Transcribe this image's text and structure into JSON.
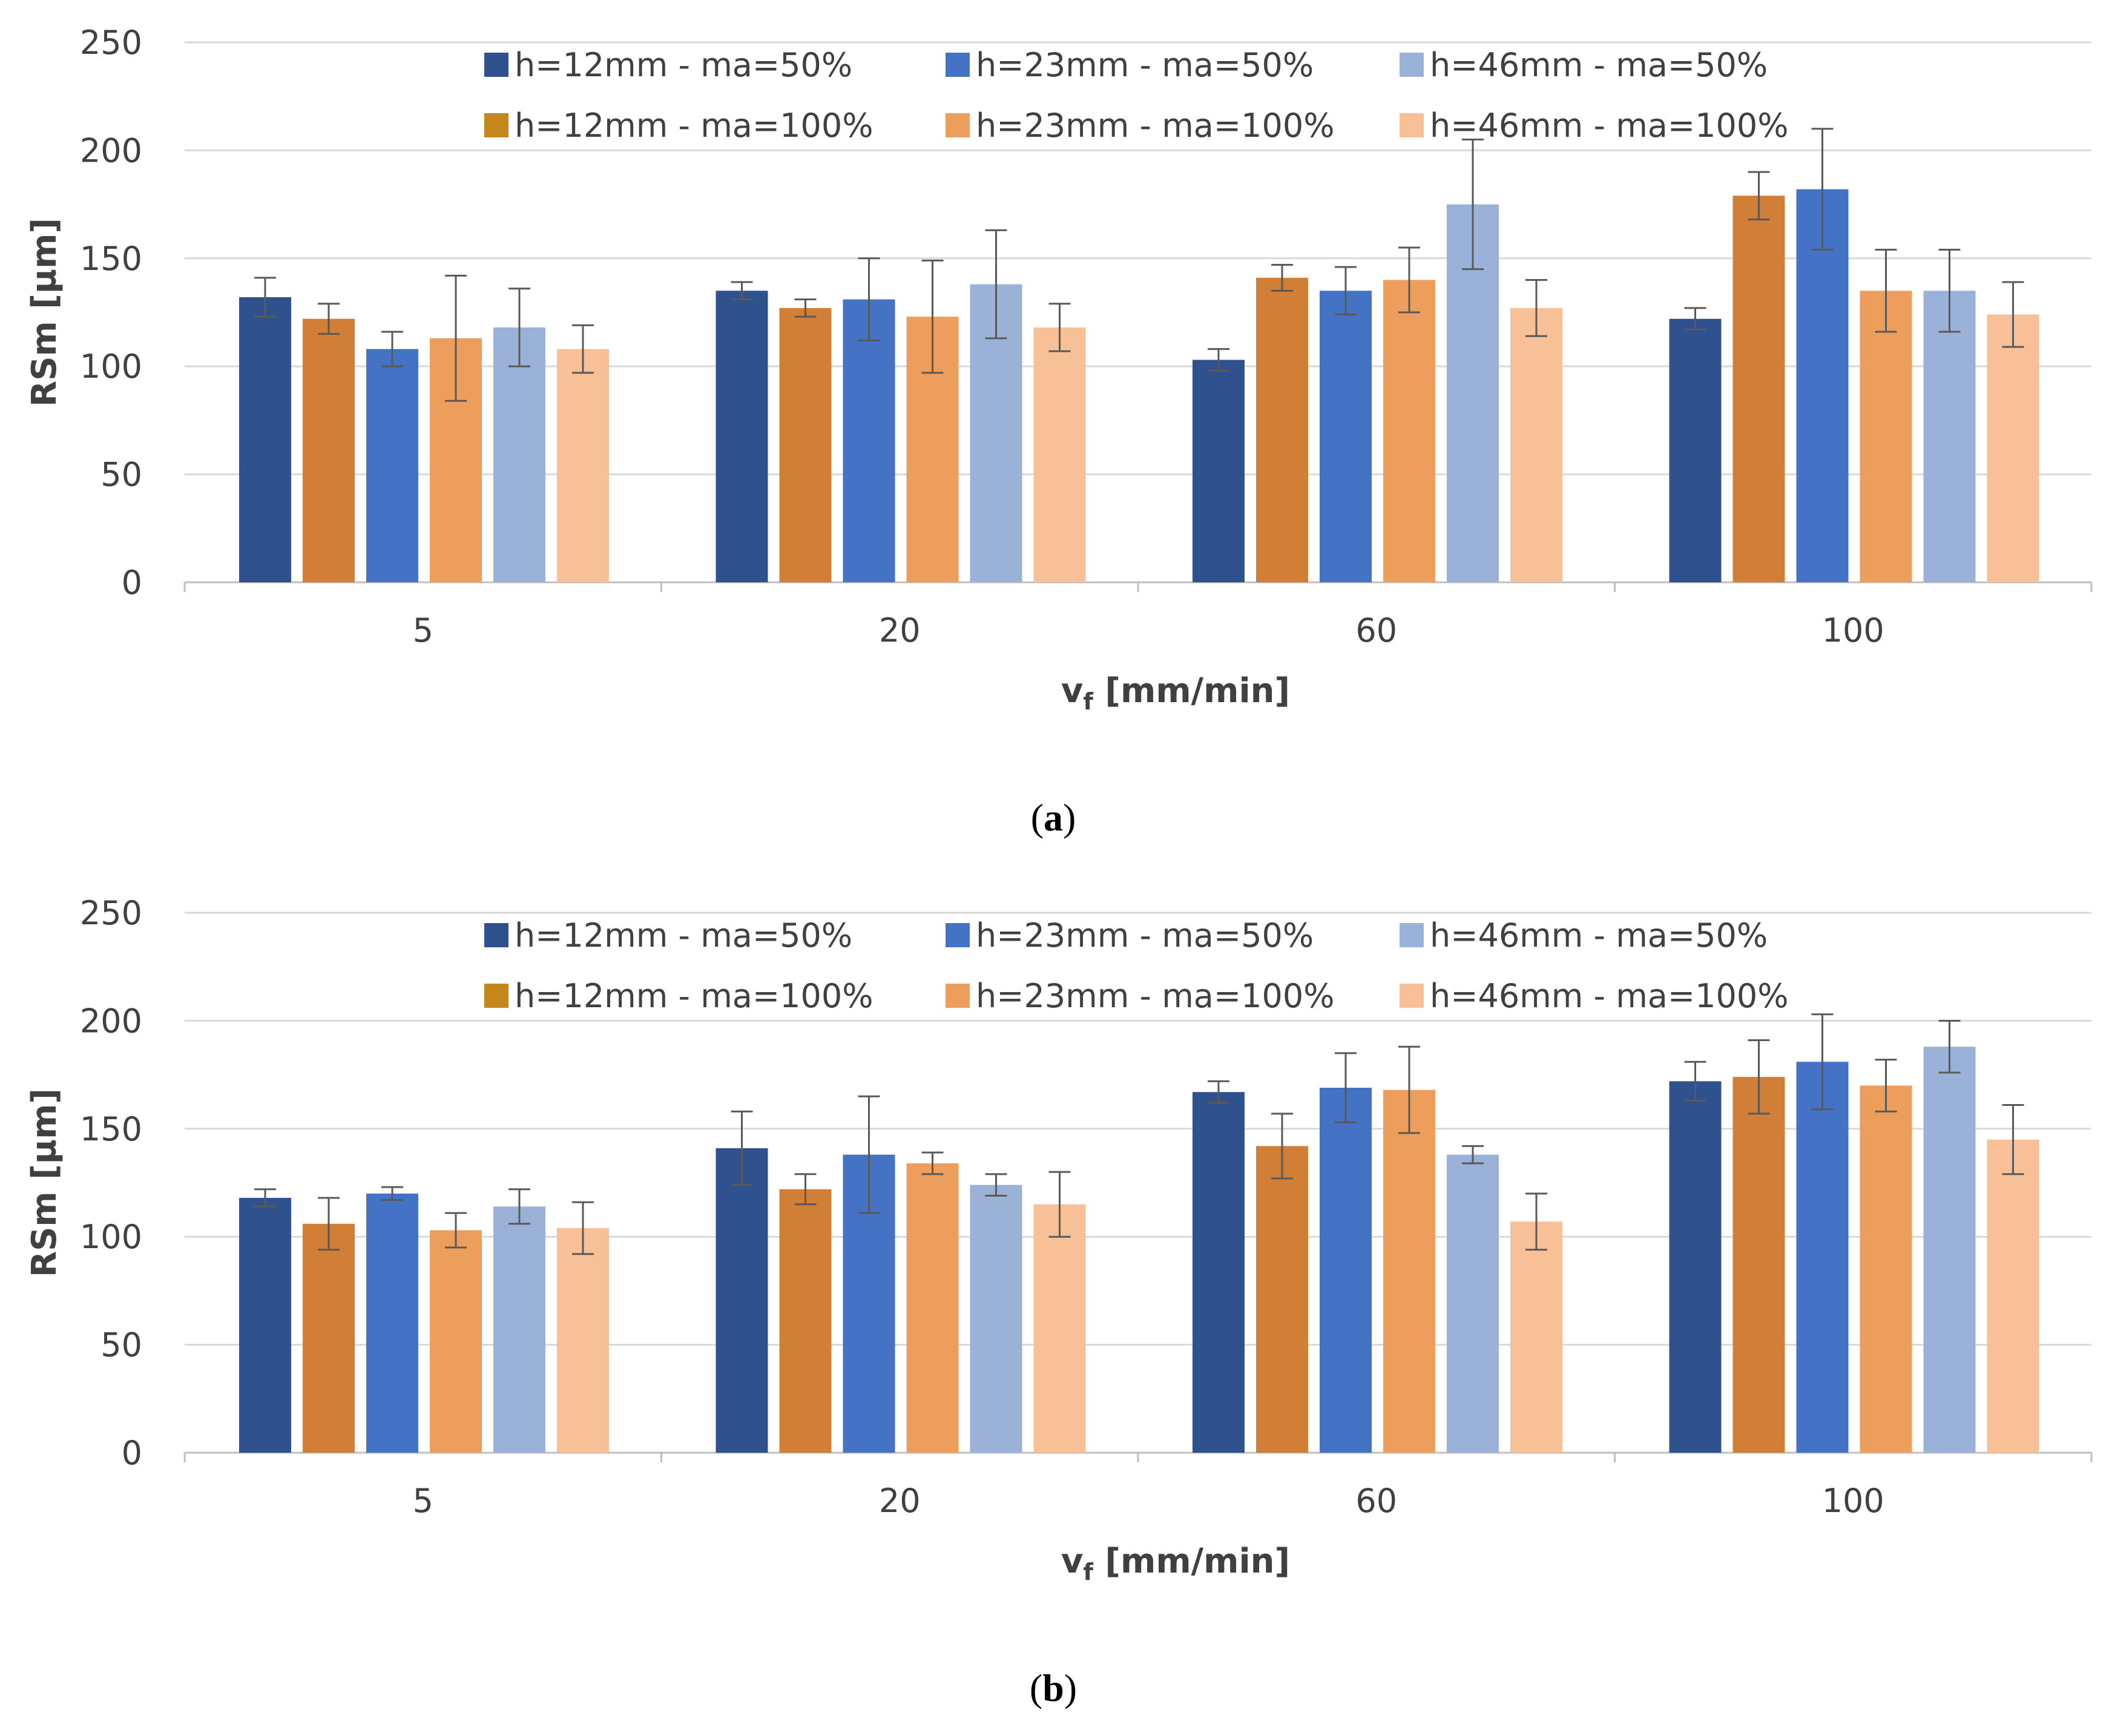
{
  "colors": {
    "h12_m50": "#2f528f",
    "h12_m100": "#d17e37",
    "h23_m50": "#4472c4",
    "h23_m100": "#ed9e5c",
    "h46_m50": "#9bb2d8",
    "h46_m100": "#f8c096",
    "legend_h12_m100": "#c5861b",
    "grid": "#d9d9d9",
    "axis": "#bfbfbf",
    "error_bar": "#595959"
  },
  "chart_data": [
    {
      "type": "bar",
      "panel": "a",
      "caption": {
        "open": "(",
        "letter": "a",
        "close": ")"
      },
      "categories": [
        "5",
        "20",
        "60",
        "100"
      ],
      "xlabel": {
        "base": "v",
        "sub": "f",
        "rest": " [mm/min]"
      },
      "ylabel": "RSm [µm]",
      "ylim": [
        0,
        250
      ],
      "yticks": [
        "0",
        "50",
        "100",
        "150",
        "200",
        "250"
      ],
      "grid": true,
      "legend_position": "top",
      "series": [
        {
          "key": "h12_m50",
          "name": "h=12mm - ma=50%",
          "values": [
            132,
            135,
            103,
            122
          ],
          "errors": [
            9,
            4,
            5,
            5
          ]
        },
        {
          "key": "h12_m100",
          "name": "h=12mm - ma=100%",
          "values": [
            122,
            127,
            141,
            179
          ],
          "errors": [
            7,
            4,
            6,
            11
          ]
        },
        {
          "key": "h23_m50",
          "name": "h=23mm - ma=50%",
          "values": [
            108,
            131,
            135,
            182
          ],
          "errors": [
            8,
            19,
            11,
            28
          ]
        },
        {
          "key": "h23_m100",
          "name": "h=23mm - ma=100%",
          "values": [
            113,
            123,
            140,
            135
          ],
          "errors": [
            29,
            26,
            15,
            19
          ]
        },
        {
          "key": "h46_m50",
          "name": "h=46mm - ma=50%",
          "values": [
            118,
            138,
            175,
            135
          ],
          "errors": [
            18,
            25,
            30,
            19
          ]
        },
        {
          "key": "h46_m100",
          "name": "h=46mm - ma=100%",
          "values": [
            108,
            118,
            127,
            124
          ],
          "errors": [
            11,
            11,
            13,
            15
          ]
        }
      ]
    },
    {
      "type": "bar",
      "panel": "b",
      "caption": {
        "open": "(",
        "letter": "b",
        "close": ")"
      },
      "categories": [
        "5",
        "20",
        "60",
        "100"
      ],
      "xlabel": {
        "base": "v",
        "sub": "f",
        "rest": " [mm/min]"
      },
      "ylabel": "RSm [µm]",
      "ylim": [
        0,
        250
      ],
      "yticks": [
        "0",
        "50",
        "100",
        "150",
        "200",
        "250"
      ],
      "grid": true,
      "legend_position": "top",
      "series": [
        {
          "key": "h12_m50",
          "name": "h=12mm - ma=50%",
          "values": [
            118,
            141,
            167,
            172
          ],
          "errors": [
            4,
            17,
            5,
            9
          ]
        },
        {
          "key": "h12_m100",
          "name": "h=12mm - ma=100%",
          "values": [
            106,
            122,
            142,
            174
          ],
          "errors": [
            12,
            7,
            15,
            17
          ]
        },
        {
          "key": "h23_m50",
          "name": "h=23mm - ma=50%",
          "values": [
            120,
            138,
            169,
            181
          ],
          "errors": [
            3,
            27,
            16,
            22
          ]
        },
        {
          "key": "h23_m100",
          "name": "h=23mm - ma=100%",
          "values": [
            103,
            134,
            168,
            170
          ],
          "errors": [
            8,
            5,
            20,
            12
          ]
        },
        {
          "key": "h46_m50",
          "name": "h=46mm - ma=50%",
          "values": [
            114,
            124,
            138,
            188
          ],
          "errors": [
            8,
            5,
            4,
            12
          ]
        },
        {
          "key": "h46_m100",
          "name": "h=46mm - ma=100%",
          "values": [
            104,
            115,
            107,
            145
          ],
          "errors": [
            12,
            15,
            13,
            16
          ]
        }
      ]
    }
  ]
}
